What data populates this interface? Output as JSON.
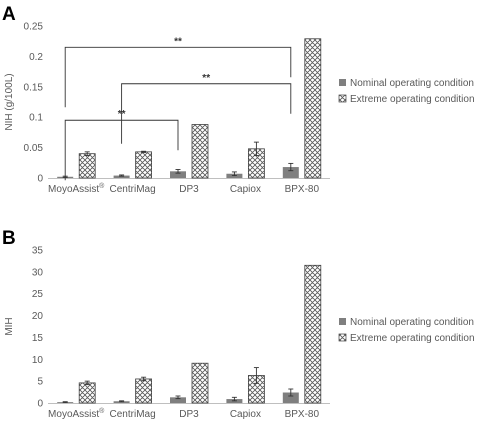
{
  "chart_data": [
    {
      "panel_label": "A",
      "type": "bar",
      "categories": [
        "MoyoAssist",
        "CentriMag",
        "DP3",
        "Capiox",
        "BPX-80"
      ],
      "category_superscripts": [
        "®",
        "",
        "",
        "",
        ""
      ],
      "ylabel": "NIH (g/100L)",
      "xlabel": "",
      "ylim": [
        0,
        0.25
      ],
      "yticks": [
        "0",
        "0.05",
        "0.1",
        "0.15",
        "0.2",
        "0.25"
      ],
      "ytick_values": [
        0,
        0.05,
        0.1,
        0.15,
        0.2,
        0.25
      ],
      "grid": false,
      "legend_position": "right",
      "series": [
        {
          "name": "Nominal operating condition",
          "values": [
            0.002,
            0.004,
            0.011,
            0.007,
            0.018
          ],
          "errors": [
            0.001,
            0.001,
            0.003,
            0.003,
            0.006
          ],
          "color": "#7f7f7f"
        },
        {
          "name": "Extreme operating condition",
          "values": [
            0.04,
            0.043,
            0.088,
            0.048,
            0.229
          ],
          "errors": [
            0.003,
            0.001,
            0.0,
            0.011,
            0.0
          ],
          "pattern": "crosshatch"
        }
      ],
      "significance": [
        {
          "from": 0,
          "to": 4,
          "label": "**",
          "level": 0.215
        },
        {
          "from": 1,
          "to": 4,
          "label": "**",
          "level": 0.155
        },
        {
          "from": 0,
          "to": 2,
          "label": "**",
          "level": 0.095
        }
      ]
    },
    {
      "panel_label": "B",
      "type": "bar",
      "categories": [
        "MoyoAssist",
        "CentriMag",
        "DP3",
        "Capiox",
        "BPX-80"
      ],
      "category_superscripts": [
        "®",
        "",
        "",
        "",
        ""
      ],
      "ylabel": "MIH",
      "xlabel": "",
      "ylim": [
        0,
        35
      ],
      "yticks": [
        "0",
        "5",
        "10",
        "15",
        "20",
        "25",
        "30",
        "35"
      ],
      "ytick_values": [
        0,
        5,
        10,
        15,
        20,
        25,
        30,
        35
      ],
      "grid": false,
      "legend_position": "right",
      "series": [
        {
          "name": "Nominal operating condition",
          "values": [
            0.2,
            0.4,
            1.3,
            0.9,
            2.4
          ],
          "errors": [
            0.1,
            0.1,
            0.3,
            0.4,
            0.8
          ],
          "color": "#7f7f7f"
        },
        {
          "name": "Extreme operating condition",
          "values": [
            4.6,
            5.5,
            9.1,
            6.3,
            31.5
          ],
          "errors": [
            0.4,
            0.4,
            0.0,
            1.8,
            0.0
          ],
          "pattern": "crosshatch"
        }
      ],
      "significance": []
    }
  ]
}
